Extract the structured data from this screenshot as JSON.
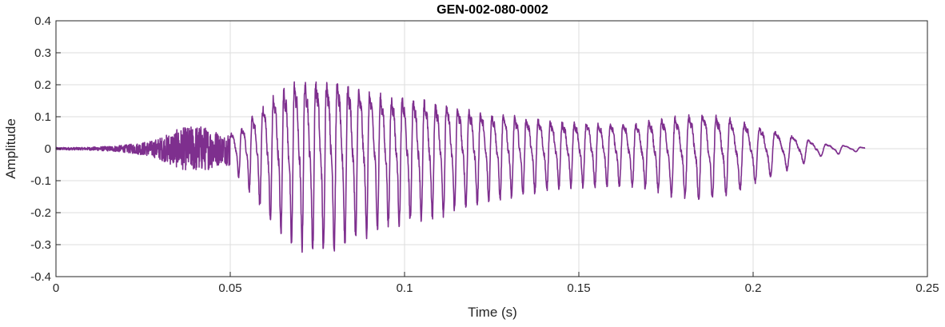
{
  "chart_data": {
    "type": "line",
    "title": "GEN-002-080-0002",
    "xlabel": "Time (s)",
    "ylabel": "Amplitude",
    "xlim": [
      0,
      0.25
    ],
    "ylim": [
      -0.4,
      0.4
    ],
    "xticks": [
      0,
      0.05,
      0.1,
      0.15,
      0.2,
      0.25
    ],
    "xtick_labels": [
      "0",
      "0.05",
      "0.1",
      "0.15",
      "0.2",
      "0.25"
    ],
    "yticks": [
      -0.4,
      -0.3,
      -0.2,
      -0.1,
      0,
      0.1,
      0.2,
      0.3,
      0.4
    ],
    "ytick_labels": [
      "-0.4",
      "-0.3",
      "-0.2",
      "-0.1",
      "0",
      "0.1",
      "0.2",
      "0.3",
      "0.4"
    ],
    "grid": true,
    "legend": "none",
    "series": [
      {
        "color": "#7e2f8e",
        "sample_rate_hz": 16000,
        "x_start": 0,
        "x_end": 0.232,
        "segments": [
          {
            "t_start": 0.0,
            "t_end": 0.016,
            "kind": "noise",
            "peak": 0.004
          },
          {
            "t_start": 0.016,
            "t_end": 0.024,
            "kind": "noise",
            "peak": 0.012
          },
          {
            "t_start": 0.024,
            "t_end": 0.031,
            "kind": "noise",
            "peak": 0.025
          },
          {
            "t_start": 0.031,
            "t_end": 0.036,
            "kind": "noise",
            "peak": 0.055
          },
          {
            "t_start": 0.036,
            "t_end": 0.046,
            "kind": "noise",
            "peak": 0.075
          },
          {
            "t_start": 0.046,
            "t_end": 0.05,
            "kind": "noise",
            "peak": 0.04
          },
          {
            "t_start": 0.05,
            "t_end": 0.057,
            "kind": "voiced",
            "peak": 0.09,
            "f0_hz": 330
          },
          {
            "t_start": 0.057,
            "t_end": 0.064,
            "kind": "voiced",
            "peak": 0.2,
            "f0_hz": 330
          },
          {
            "t_start": 0.064,
            "t_end": 0.072,
            "kind": "voiced",
            "peak": 0.28,
            "f0_hz": 330
          },
          {
            "t_start": 0.072,
            "t_end": 0.085,
            "kind": "voiced",
            "peak": 0.3,
            "f0_hz": 325
          },
          {
            "t_start": 0.085,
            "t_end": 0.1,
            "kind": "voiced",
            "peak": 0.23,
            "f0_hz": 320
          },
          {
            "t_start": 0.1,
            "t_end": 0.115,
            "kind": "voiced",
            "peak": 0.2,
            "f0_hz": 315
          },
          {
            "t_start": 0.115,
            "t_end": 0.135,
            "kind": "voiced",
            "peak": 0.15,
            "f0_hz": 305
          },
          {
            "t_start": 0.135,
            "t_end": 0.16,
            "kind": "voiced",
            "peak": 0.11,
            "f0_hz": 290
          },
          {
            "t_start": 0.16,
            "t_end": 0.175,
            "kind": "voiced",
            "peak": 0.11,
            "f0_hz": 270
          },
          {
            "t_start": 0.175,
            "t_end": 0.195,
            "kind": "voiced",
            "peak": 0.15,
            "f0_hz": 255
          },
          {
            "t_start": 0.195,
            "t_end": 0.205,
            "kind": "voiced",
            "peak": 0.1,
            "f0_hz": 230
          },
          {
            "t_start": 0.205,
            "t_end": 0.215,
            "kind": "voiced",
            "peak": 0.06,
            "f0_hz": 210
          },
          {
            "t_start": 0.215,
            "t_end": 0.225,
            "kind": "voiced",
            "peak": 0.02,
            "f0_hz": 200
          },
          {
            "t_start": 0.225,
            "t_end": 0.232,
            "kind": "voiced",
            "peak": 0.01,
            "f0_hz": 200
          }
        ]
      }
    ]
  }
}
